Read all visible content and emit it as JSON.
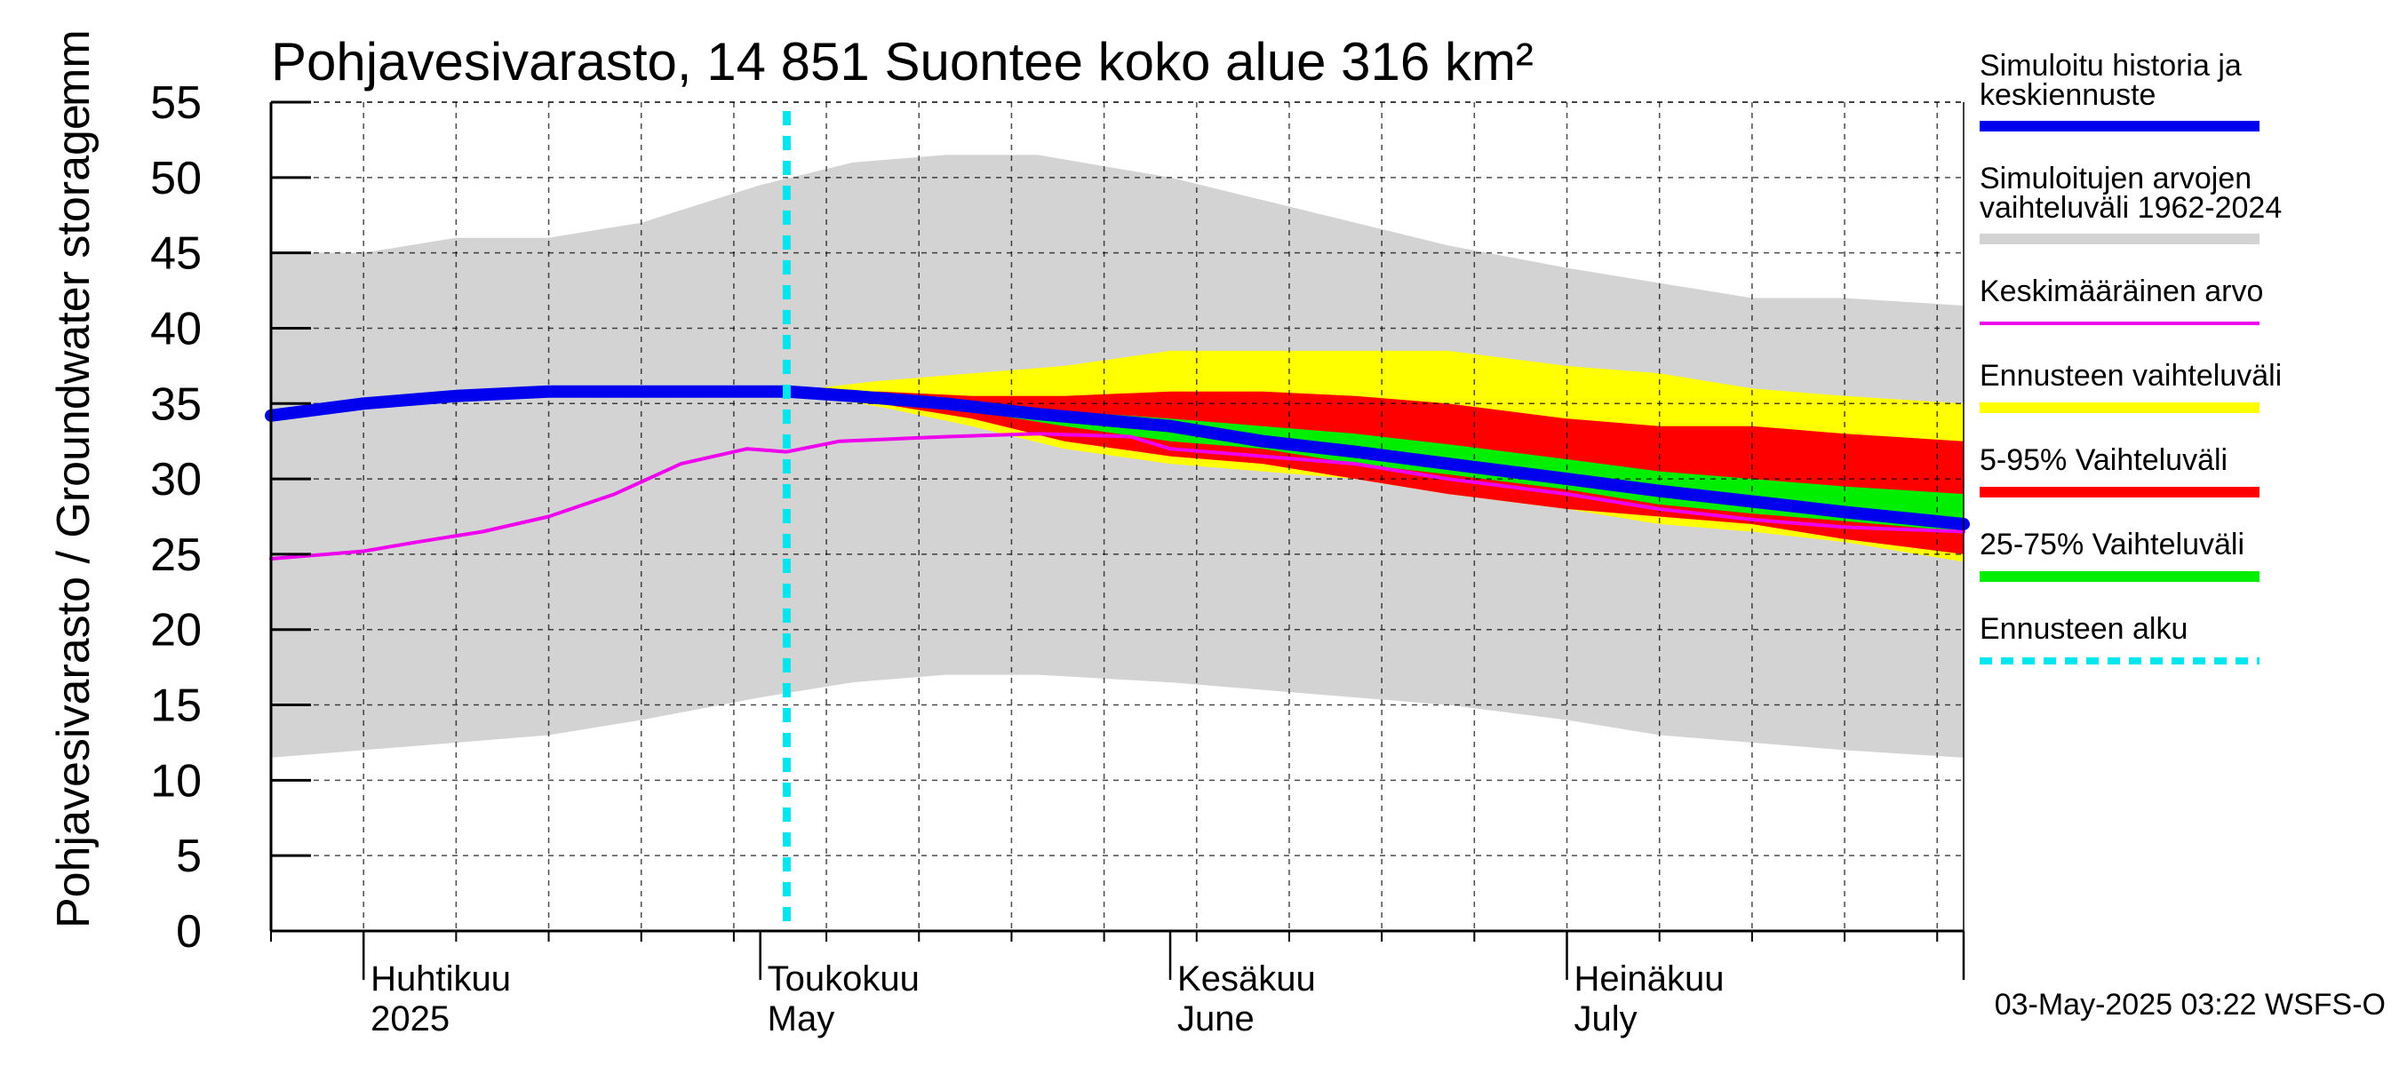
{
  "chart_data": {
    "type": "area",
    "title": "Pohjavesivarasto, 14 851 Suontee koko alue 316 km²",
    "ylabel": "Pohjavesivarasto / Groundwater storage",
    "yunit": "mm",
    "ylim": [
      0,
      55
    ],
    "yticks": [
      "0",
      "5",
      "10",
      "15",
      "20",
      "25",
      "30",
      "35",
      "40",
      "45",
      "50",
      "55"
    ],
    "xlim": [
      "2025-03-25",
      "2025-07-31"
    ],
    "month_labels": [
      {
        "date": "2025-04-01",
        "fi": "Huhtikuu",
        "en": "2025"
      },
      {
        "date": "2025-05-01",
        "fi": "Toukokuu",
        "en": "May"
      },
      {
        "date": "2025-06-01",
        "fi": "Kesäkuu",
        "en": "June"
      },
      {
        "date": "2025-07-01",
        "fi": "Heinäkuu",
        "en": "July"
      }
    ],
    "forecast_start": "2025-05-03",
    "grid": true,
    "legend_position": "right",
    "footer": "03-May-2025 03:22 WSFS-O",
    "series": [
      {
        "name": "Simuloitujen arvojen vaihteluväli 1962-2024",
        "kind": "band",
        "color": "#d3d3d3",
        "x": [
          "2025-03-25",
          "2025-04-01",
          "2025-04-08",
          "2025-04-15",
          "2025-04-22",
          "2025-05-01",
          "2025-05-08",
          "2025-05-15",
          "2025-05-22",
          "2025-06-01",
          "2025-06-08",
          "2025-06-15",
          "2025-06-22",
          "2025-07-01",
          "2025-07-08",
          "2025-07-15",
          "2025-07-22",
          "2025-07-31"
        ],
        "upper": [
          45,
          45,
          46,
          46,
          47,
          49.5,
          51,
          51.5,
          51.5,
          50,
          48.5,
          47,
          45.5,
          44,
          43,
          42,
          42,
          41.5
        ],
        "lower": [
          11.5,
          12,
          12.5,
          13,
          14,
          15.5,
          16.5,
          17,
          17,
          16.5,
          16,
          15.5,
          15,
          14,
          13,
          12.5,
          12,
          11.5
        ]
      },
      {
        "name": "Ennusteen vaihteluväli",
        "kind": "band",
        "color": "#ffff00",
        "x": [
          "2025-05-03",
          "2025-05-10",
          "2025-05-17",
          "2025-05-24",
          "2025-06-01",
          "2025-06-08",
          "2025-06-15",
          "2025-06-22",
          "2025-07-01",
          "2025-07-08",
          "2025-07-15",
          "2025-07-22",
          "2025-07-31"
        ],
        "upper": [
          35.8,
          36.5,
          37,
          37.5,
          38.5,
          38.5,
          38.5,
          38.5,
          37.5,
          37,
          36,
          35.5,
          35
        ],
        "lower": [
          35.8,
          34.8,
          33.5,
          32,
          31,
          30.5,
          30,
          29,
          28,
          27,
          26.5,
          25.8,
          24.5
        ]
      },
      {
        "name": "5-95% Vaihteluväli",
        "kind": "band",
        "color": "#ff0000",
        "x": [
          "2025-05-03",
          "2025-05-10",
          "2025-05-17",
          "2025-05-24",
          "2025-06-01",
          "2025-06-08",
          "2025-06-15",
          "2025-06-22",
          "2025-07-01",
          "2025-07-08",
          "2025-07-15",
          "2025-07-22",
          "2025-07-31"
        ],
        "upper": [
          35.8,
          35.8,
          35.5,
          35.5,
          35.8,
          35.8,
          35.5,
          35,
          34,
          33.5,
          33.5,
          33,
          32.5
        ],
        "lower": [
          35.8,
          35,
          34,
          32.5,
          31.5,
          31,
          30,
          29,
          28,
          27.5,
          27,
          26,
          25
        ]
      },
      {
        "name": "25-75% Vaihteluväli",
        "kind": "band",
        "color": "#00ee00",
        "x": [
          "2025-05-03",
          "2025-05-10",
          "2025-05-17",
          "2025-05-24",
          "2025-06-01",
          "2025-06-08",
          "2025-06-15",
          "2025-06-22",
          "2025-07-01",
          "2025-07-08",
          "2025-07-15",
          "2025-07-22",
          "2025-07-31"
        ],
        "upper": [
          35.8,
          35.6,
          35,
          34.5,
          34,
          33.5,
          33,
          32.3,
          31.3,
          30.5,
          30,
          29.5,
          29
        ],
        "lower": [
          35.8,
          35.2,
          34.5,
          33.5,
          32.5,
          32,
          31,
          30.3,
          29.3,
          28.3,
          27.7,
          27.2,
          26.5
        ]
      },
      {
        "name": "Keskimääräinen arvo",
        "kind": "line",
        "color": "#ee00ee",
        "x": [
          "2025-03-25",
          "2025-04-01",
          "2025-04-05",
          "2025-04-10",
          "2025-04-15",
          "2025-04-20",
          "2025-04-25",
          "2025-04-30",
          "2025-05-03",
          "2025-05-07",
          "2025-05-15",
          "2025-05-22",
          "2025-05-29",
          "2025-06-01",
          "2025-06-08",
          "2025-06-15",
          "2025-06-22",
          "2025-07-01",
          "2025-07-08",
          "2025-07-15",
          "2025-07-22",
          "2025-07-31"
        ],
        "values": [
          24.7,
          25.2,
          25.8,
          26.5,
          27.5,
          29,
          31,
          32,
          31.8,
          32.5,
          32.8,
          33,
          32.8,
          32,
          31.5,
          31,
          30,
          29,
          28,
          27.3,
          26.8,
          26.5
        ]
      },
      {
        "name": "Simuloitu historia ja keskiennuste",
        "kind": "line",
        "color": "#0000ee",
        "x": [
          "2025-03-25",
          "2025-04-01",
          "2025-04-08",
          "2025-04-15",
          "2025-04-22",
          "2025-05-01",
          "2025-05-03",
          "2025-05-08",
          "2025-05-15",
          "2025-05-22",
          "2025-06-01",
          "2025-06-08",
          "2025-06-15",
          "2025-06-22",
          "2025-07-01",
          "2025-07-08",
          "2025-07-15",
          "2025-07-22",
          "2025-07-31"
        ],
        "values": [
          34.2,
          35,
          35.5,
          35.8,
          35.8,
          35.8,
          35.8,
          35.5,
          35,
          34.3,
          33.5,
          32.5,
          31.8,
          31,
          30,
          29.2,
          28.5,
          27.8,
          27
        ]
      },
      {
        "name": "Ennusteen alku",
        "kind": "vline",
        "color": "#00e5ee",
        "x": [
          "2025-05-03"
        ]
      }
    ]
  },
  "legend": [
    {
      "line1": "Simuloitu historia ja",
      "line2": "keskiennuste",
      "color": "#0000ee",
      "style": "solid"
    },
    {
      "line1": "Simuloitujen arvojen",
      "line2": "vaihteluväli 1962-2024",
      "color": "#d3d3d3",
      "style": "solid"
    },
    {
      "line1": "Keskimääräinen arvo",
      "line2": "",
      "color": "#ee00ee",
      "style": "thin"
    },
    {
      "line1": "Ennusteen vaihteluväli",
      "line2": "",
      "color": "#ffff00",
      "style": "solid"
    },
    {
      "line1": "5-95% Vaihteluväli",
      "line2": "",
      "color": "#ff0000",
      "style": "solid"
    },
    {
      "line1": "25-75% Vaihteluväli",
      "line2": "",
      "color": "#00ee00",
      "style": "solid"
    },
    {
      "line1": "Ennusteen alku",
      "line2": "",
      "color": "#00e5ee",
      "style": "dashed"
    }
  ]
}
